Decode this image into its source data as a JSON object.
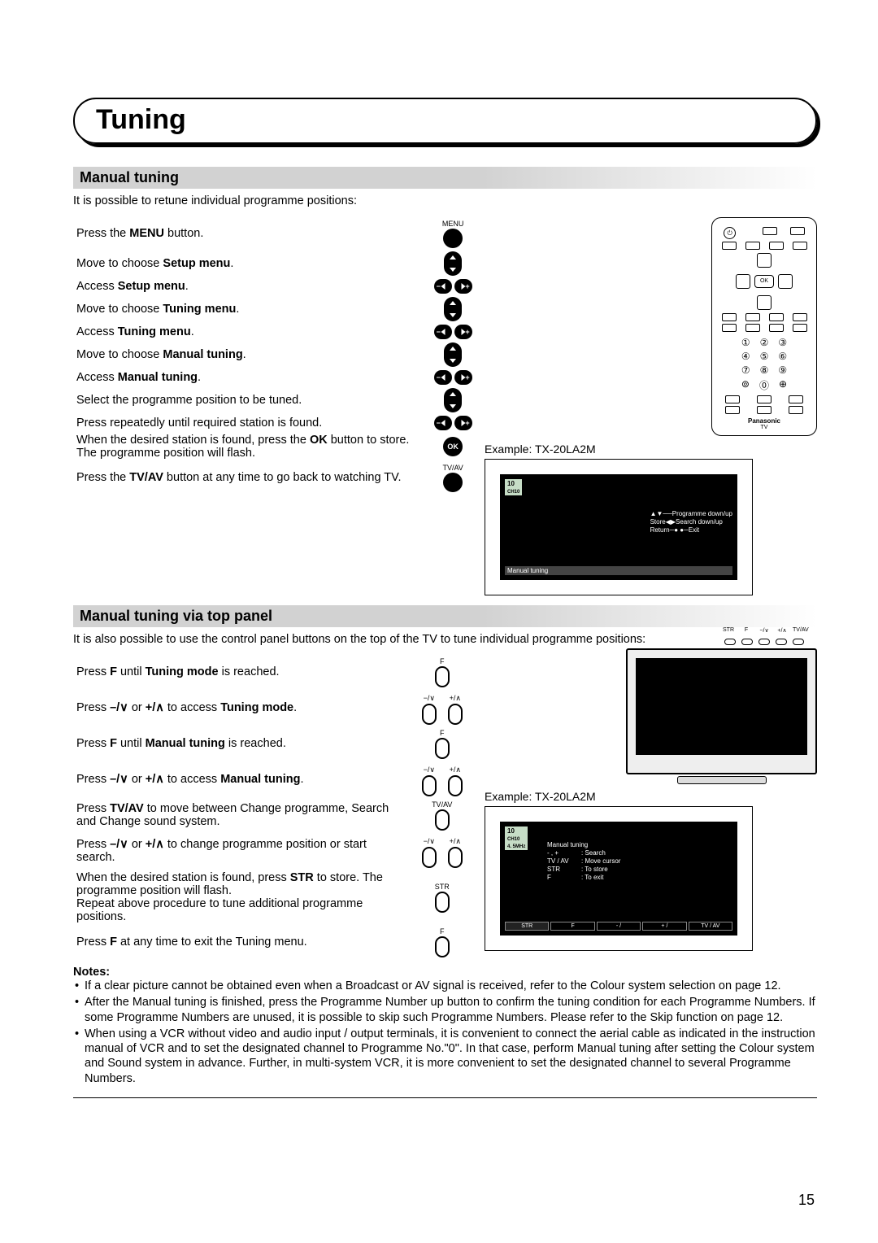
{
  "page": {
    "number": "15"
  },
  "title": "Tuning",
  "section1": {
    "heading": "Manual tuning",
    "intro": "It is possible to retune individual programme positions:",
    "example_label": "Example: TX-20LA2M",
    "steps": [
      {
        "prefix": "Press the ",
        "bold": "MENU",
        "suffix": " button.",
        "icon": "menu"
      },
      {
        "prefix": "Move to choose ",
        "bold": "Setup menu",
        "suffix": ".",
        "icon": "updown"
      },
      {
        "prefix": "Access ",
        "bold": "Setup menu",
        "suffix": ".",
        "icon": "lr"
      },
      {
        "prefix": "Move to choose ",
        "bold": "Tuning menu",
        "suffix": ".",
        "icon": "updown"
      },
      {
        "prefix": "Access ",
        "bold": "Tuning menu",
        "suffix": ".",
        "icon": "lr"
      },
      {
        "prefix": "Move to choose ",
        "bold": "Manual tuning",
        "suffix": ".",
        "icon": "updown"
      },
      {
        "prefix": "Access ",
        "bold": "Manual tuning",
        "suffix": ".",
        "icon": "lr"
      },
      {
        "prefix": "Select the programme position to be tuned.",
        "bold": "",
        "suffix": "",
        "icon": "updown"
      },
      {
        "prefix": "Press repeatedly until required station is found.",
        "bold": "",
        "suffix": "",
        "icon": "lr"
      },
      {
        "prefix": "When the desired station is found, press the ",
        "bold": "OK",
        "suffix": " button to store. The programme position will flash.",
        "icon": "ok"
      },
      {
        "prefix": "Press the ",
        "bold": "TV/AV",
        "suffix": " button at any time to go back to watching TV.",
        "icon": "tvav"
      }
    ],
    "icon_labels": {
      "menu": "MENU",
      "ok": "OK",
      "tvav": "TV/AV"
    },
    "osd": {
      "ch": "10",
      "subch": "CH10",
      "lines": [
        {
          "l": "",
          "r": "Programme  down/up"
        },
        {
          "l": "Store",
          "r": "Search  down/up"
        },
        {
          "l": "Return",
          "r": "Exit"
        }
      ],
      "bar": "Manual tuning"
    }
  },
  "section2": {
    "heading": "Manual tuning  via top panel",
    "intro": "It is also possible to use the control panel buttons on the top of the TV to tune individual programme positions:",
    "example_label": "Example: TX-20LA2M",
    "top_labels": [
      "STR",
      "F",
      "−/∨",
      "+/∧",
      "TV/AV"
    ],
    "steps": [
      {
        "text": "Press <b>F</b> until <b>Tuning mode</b> is reached.",
        "icon": "F",
        "lab": "F"
      },
      {
        "text": "Press <b>–/∨</b> or <b>+/∧</b> to access <b>Tuning mode</b>.",
        "icon": "pair",
        "lab1": "−/∨",
        "lab2": "+/∧"
      },
      {
        "text": "Press <b>F</b> until <b>Manual tuning</b> is reached.",
        "icon": "F",
        "lab": "F"
      },
      {
        "text": "Press <b>–/∨</b> or <b>+/∧</b> to access <b>Manual tuning</b>.",
        "icon": "pair",
        "lab1": "−/∨",
        "lab2": "+/∧"
      },
      {
        "text": "Press <b>TV/AV</b> to move between Change programme, Search and Change sound system.",
        "icon": "F",
        "lab": "TV/AV"
      },
      {
        "text": "Press <b>–/∨</b> or <b>+/∧</b> to change programme position or start search.",
        "icon": "pair",
        "lab1": "−/∨",
        "lab2": "+/∧"
      },
      {
        "text": "When the desired station is found, press <b>STR</b> to store. The programme position will flash.<br>Repeat above procedure to tune additional programme positions.",
        "icon": "F",
        "lab": "STR"
      },
      {
        "text": "Press <b>F</b> at any time to exit the Tuning menu.",
        "icon": "F",
        "lab": "F"
      }
    ],
    "osd": {
      "ch": "10",
      "subch": "CH10",
      "freq": "4. 5MHz",
      "title": "Manual   tuning",
      "rows": [
        {
          "k": "- , +",
          "v": ":  Search"
        },
        {
          "k": "TV / AV",
          "v": ":  Move  cursor"
        },
        {
          "k": "STR",
          "v": ":  To  store"
        },
        {
          "k": "F",
          "v": ":  To   exit"
        }
      ],
      "bottom": [
        "STR",
        "F",
        "- / ",
        "+ / ",
        "TV / AV"
      ]
    }
  },
  "notes": {
    "heading": "Notes:",
    "items": [
      "If a clear picture cannot be obtained even when a Broadcast or AV signal is received, refer to the Colour system selection on page 12.",
      "After the Manual tuning is finished, press the Programme Number up button to confirm the tuning condition for each Programme Numbers. If some Programme Numbers are unused, it is possible to skip such Programme Numbers. Please refer to the Skip function on page 12.",
      "When using a VCR without video and audio input / output terminals, it is convenient to connect the aerial cable as indicated in the instruction manual of VCR and to set the designated channel to Programme No.\"0\". In that case, perform Manual tuning after setting the Colour system and Sound system in advance. Further, in multi-system VCR, it is more convenient to set the designated channel to several Programme Numbers."
    ]
  },
  "remote": {
    "ok": "OK",
    "numbers": [
      "①",
      "②",
      "③",
      "④",
      "⑤",
      "⑥",
      "⑦",
      "⑧",
      "⑨",
      "⊚",
      "⓪",
      "⊕"
    ],
    "brand": "Panasonic",
    "sub": "TV"
  },
  "colors": {
    "subhead_bg": "#d2d2d2",
    "osd_bg": "#000000",
    "osd_fg": "#ffffff"
  }
}
